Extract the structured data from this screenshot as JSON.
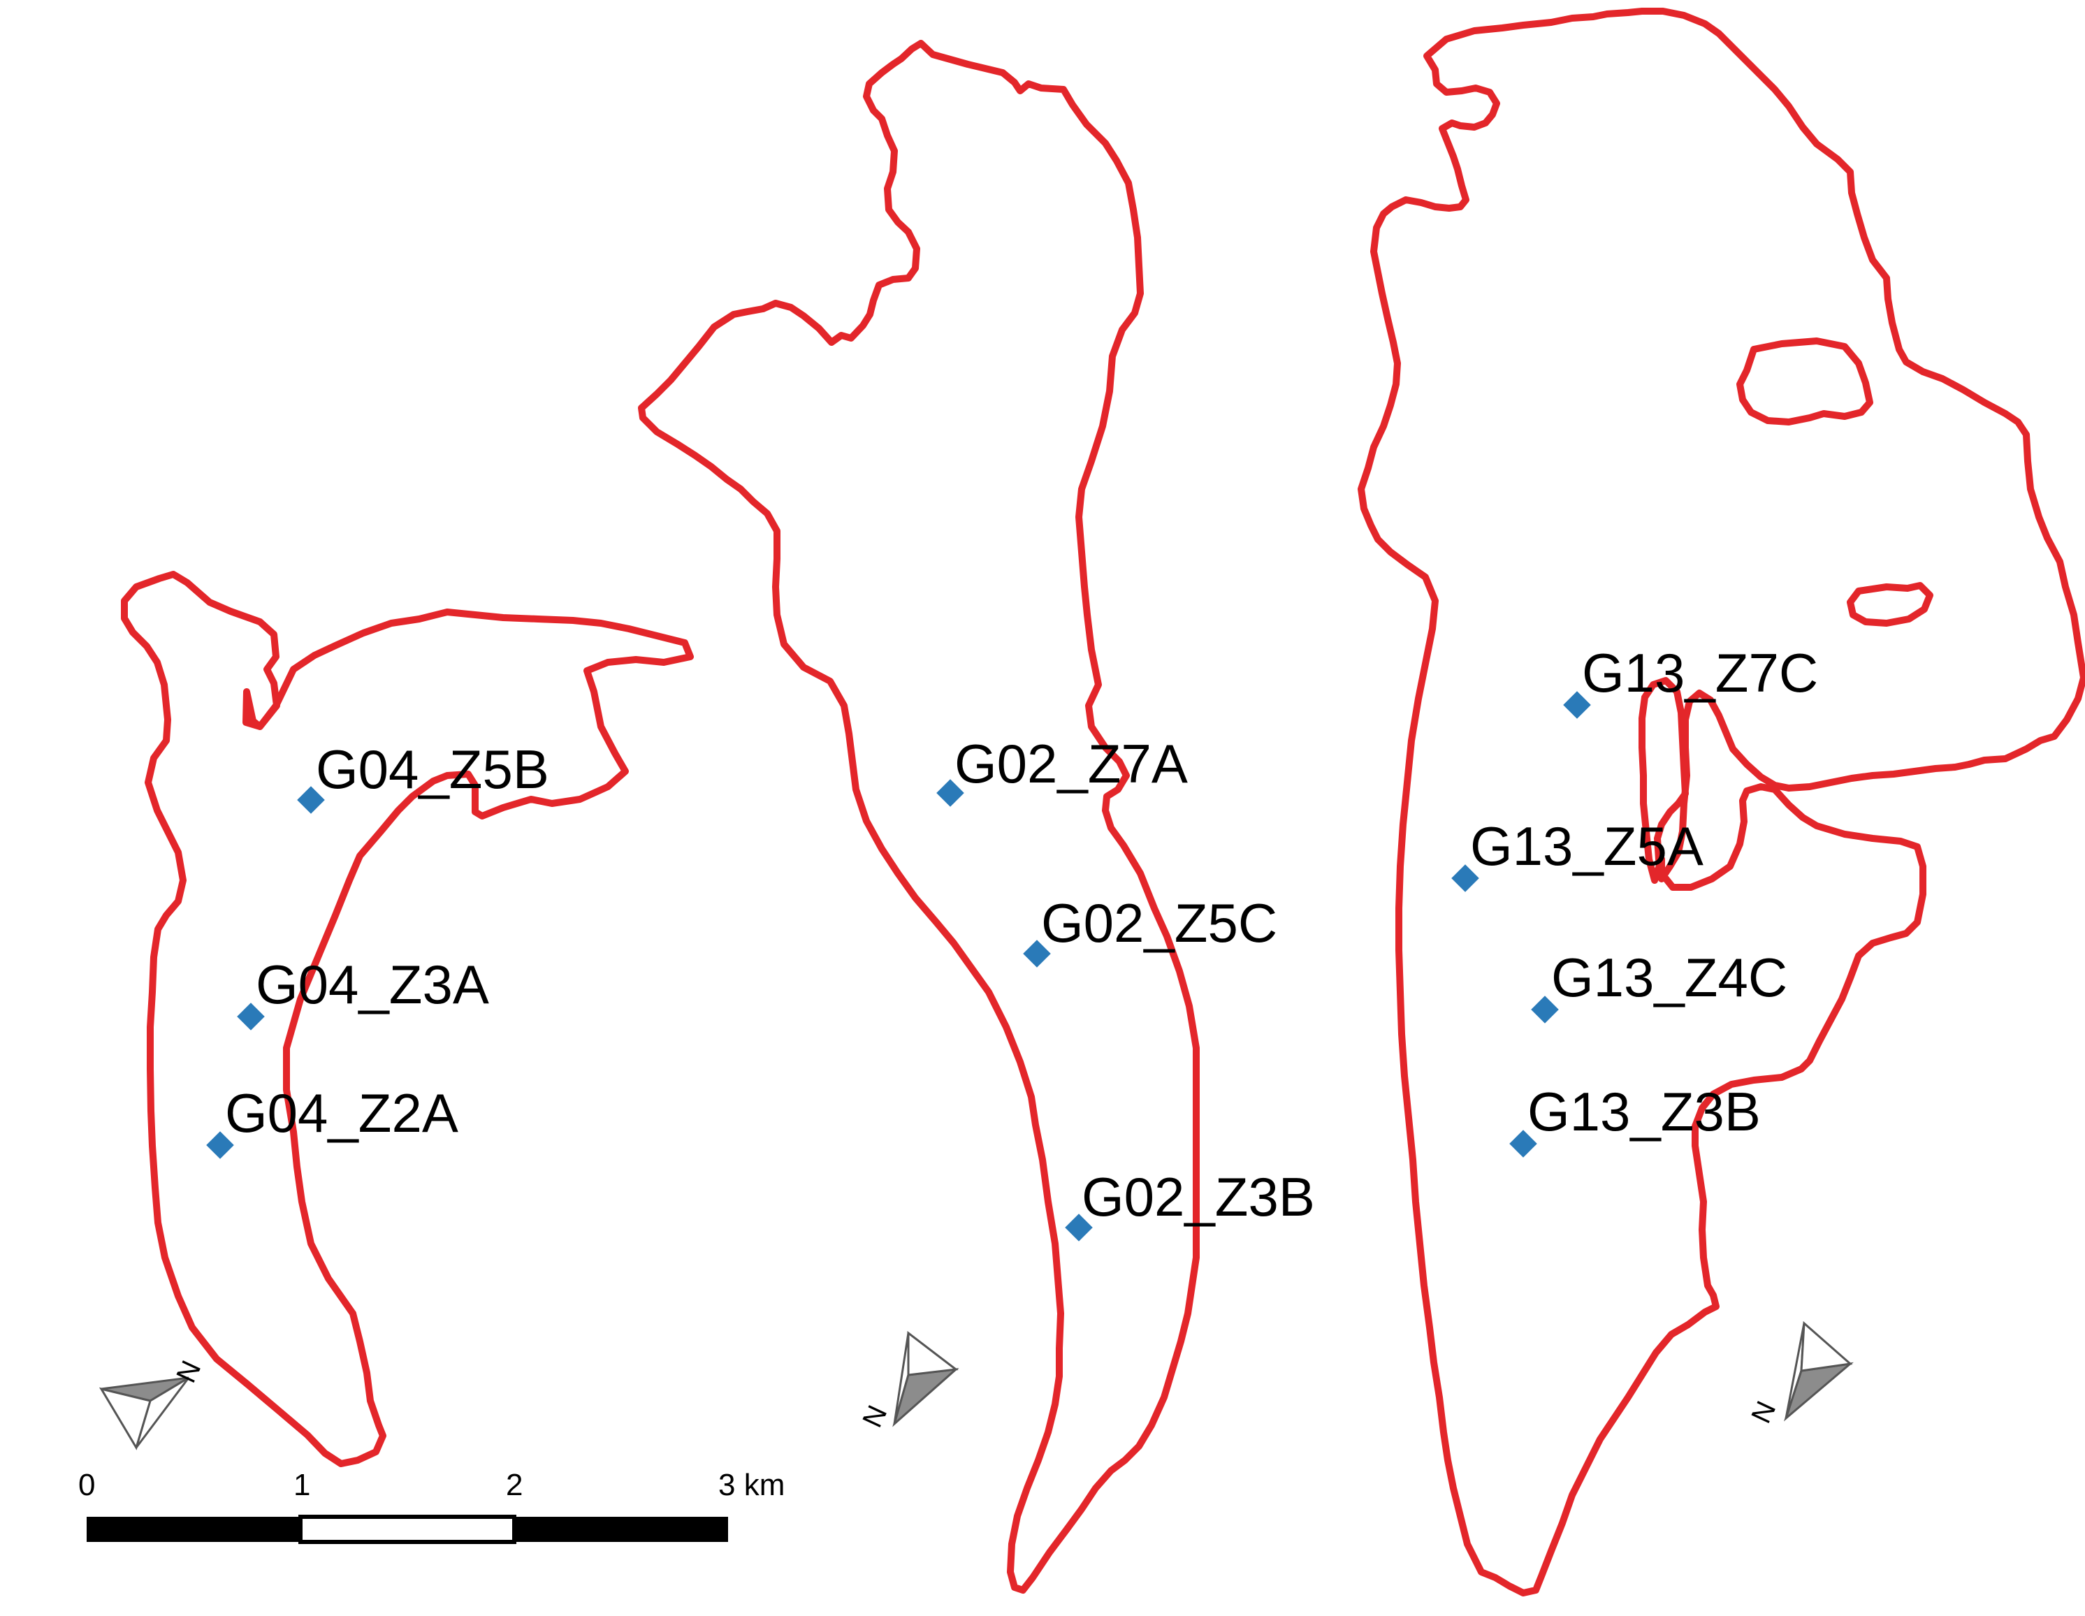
{
  "sites": [
    {
      "id": "g04-z5b",
      "label": "G04_Z5B"
    },
    {
      "id": "g04-z3a",
      "label": "G04_Z3A"
    },
    {
      "id": "g04-z2a",
      "label": "G04_Z2A"
    },
    {
      "id": "g02-z7a",
      "label": "G02_Z7A"
    },
    {
      "id": "g02-z5c",
      "label": "G02_Z5C"
    },
    {
      "id": "g02-z3b",
      "label": "G02_Z3B"
    },
    {
      "id": "g13-z7c",
      "label": "G13_Z7C"
    },
    {
      "id": "g13-z5a",
      "label": "G13_Z5A"
    },
    {
      "id": "g13-z4c",
      "label": "G13_Z4C"
    },
    {
      "id": "g13-z3b",
      "label": "G13_Z3B"
    }
  ],
  "north_arrow": {
    "letter": "N"
  },
  "scale_bar": {
    "labels": [
      "0",
      "1",
      "2",
      "3 km"
    ]
  },
  "colors": {
    "outline": "#e3262a",
    "site_marker": "#2a7ab8"
  }
}
